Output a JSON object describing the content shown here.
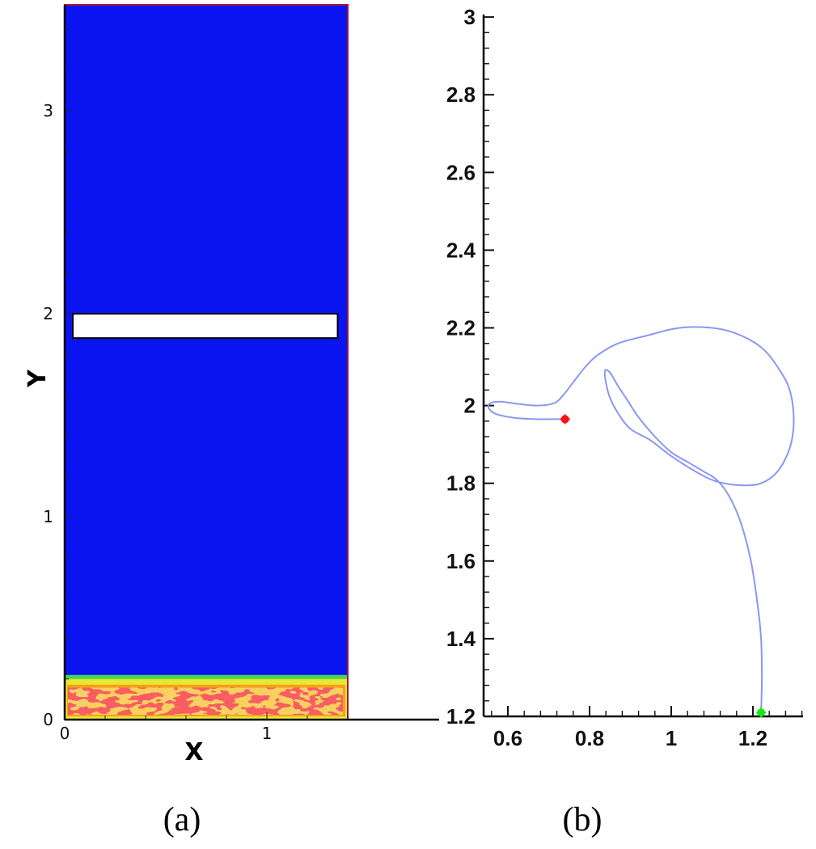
{
  "colors": {
    "fluid": "#0a14f0",
    "bed_green": "#46d850",
    "bed_yellow": "#e8e830",
    "bed_orange": "#f4a020",
    "bed_red": "#ec1c1c",
    "domain_border": "#a01838",
    "object_fill": "#ffffff",
    "trajectory": "#8a98f0",
    "start_marker": "#ff1010",
    "end_marker": "#10ee10"
  },
  "chart_data": [
    {
      "type": "heatmap",
      "panel_label": "(a)",
      "xlabel": "X",
      "ylabel": "Y",
      "xlim": [
        0,
        1.5
      ],
      "ylim": [
        0,
        3.5
      ],
      "x_ticks": [
        {
          "value": 0,
          "label": "0"
        },
        {
          "value": 1,
          "label": "1"
        }
      ],
      "y_ticks": [
        {
          "value": 0,
          "label": "0"
        },
        {
          "value": 1,
          "label": "1"
        },
        {
          "value": 2,
          "label": "2"
        },
        {
          "value": 3,
          "label": "3"
        }
      ],
      "domain": {
        "x": [
          0,
          1.4
        ],
        "y": [
          0,
          3.5
        ]
      },
      "object": {
        "x": [
          0.04,
          1.35
        ],
        "y": [
          1.88,
          2.0
        ]
      },
      "bed_height": 0.22,
      "grid": false
    },
    {
      "type": "line",
      "panel_label": "(b)",
      "xlabel": "",
      "ylabel": "",
      "xlim": [
        0.55,
        1.33
      ],
      "ylim": [
        1.2,
        3.0
      ],
      "x_ticks": [
        {
          "value": 0.6,
          "label": "0.6"
        },
        {
          "value": 0.8,
          "label": "0.8"
        },
        {
          "value": 1,
          "label": "1"
        },
        {
          "value": 1.2,
          "label": "1.2"
        }
      ],
      "y_ticks": [
        {
          "value": 1.2,
          "label": "1.2"
        },
        {
          "value": 1.4,
          "label": "1.4"
        },
        {
          "value": 1.6,
          "label": "1.6"
        },
        {
          "value": 1.8,
          "label": "1.8"
        },
        {
          "value": 2.0,
          "label": "2"
        },
        {
          "value": 2.2,
          "label": "2.2"
        },
        {
          "value": 2.4,
          "label": "2.4"
        },
        {
          "value": 2.6,
          "label": "2.6"
        },
        {
          "value": 2.8,
          "label": "2.8"
        },
        {
          "value": 3.0,
          "label": "3"
        }
      ],
      "series": [
        {
          "points": [
            [
              1.22,
              1.21
            ],
            [
              1.222,
              1.3
            ],
            [
              1.22,
              1.4
            ],
            [
              1.21,
              1.5
            ],
            [
              1.195,
              1.6
            ],
            [
              1.17,
              1.7
            ],
            [
              1.14,
              1.77
            ],
            [
              1.11,
              1.81
            ],
            [
              1.08,
              1.83
            ],
            [
              1.04,
              1.855
            ],
            [
              1.0,
              1.88
            ],
            [
              0.96,
              1.92
            ],
            [
              0.92,
              1.97
            ],
            [
              0.895,
              2.01
            ],
            [
              0.87,
              2.05
            ],
            [
              0.85,
              2.085
            ],
            [
              0.838,
              2.09
            ],
            [
              0.84,
              2.06
            ],
            [
              0.85,
              2.02
            ],
            [
              0.87,
              1.98
            ],
            [
              0.9,
              1.94
            ],
            [
              0.95,
              1.91
            ],
            [
              1.0,
              1.87
            ],
            [
              1.06,
              1.83
            ],
            [
              1.11,
              1.805
            ],
            [
              1.17,
              1.795
            ],
            [
              1.22,
              1.8
            ],
            [
              1.26,
              1.83
            ],
            [
              1.29,
              1.89
            ],
            [
              1.3,
              1.96
            ],
            [
              1.29,
              2.04
            ],
            [
              1.26,
              2.1
            ],
            [
              1.22,
              2.15
            ],
            [
              1.16,
              2.185
            ],
            [
              1.1,
              2.2
            ],
            [
              1.02,
              2.2
            ],
            [
              0.94,
              2.18
            ],
            [
              0.87,
              2.16
            ],
            [
              0.82,
              2.13
            ],
            [
              0.79,
              2.1
            ],
            [
              0.76,
              2.06
            ],
            [
              0.73,
              2.02
            ],
            [
              0.71,
              2.005
            ],
            [
              0.67,
              2.0
            ],
            [
              0.62,
              2.005
            ],
            [
              0.58,
              2.01
            ],
            [
              0.555,
              2.005
            ],
            [
              0.555,
              1.99
            ],
            [
              0.575,
              1.977
            ],
            [
              0.62,
              1.968
            ],
            [
              0.67,
              1.965
            ],
            [
              0.705,
              1.965
            ],
            [
              0.74,
              1.965
            ]
          ]
        }
      ],
      "markers": [
        {
          "name": "start",
          "x": 1.22,
          "y": 1.21,
          "color": "#10ee10"
        },
        {
          "name": "end",
          "x": 0.74,
          "y": 1.965,
          "color": "#ff1010"
        }
      ],
      "grid": false
    }
  ]
}
